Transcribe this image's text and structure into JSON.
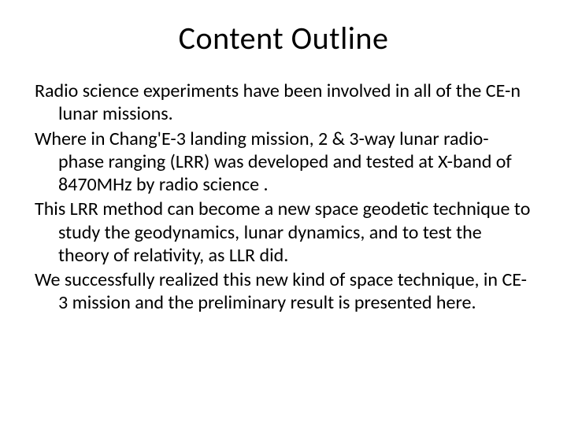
{
  "slide": {
    "title": "Content Outline",
    "paragraphs": [
      "Radio science experiments have been involved in all of the CE-n lunar missions.",
      "Where in Chang'E-3 landing mission,  2 & 3-way lunar radio-phase ranging (LRR) was developed and tested at X-band of 8470MHz by radio science .",
      "This LRR method can become a new space geodetic technique to study the geodynamics, lunar dynamics, and to test the theory of relativity, as LLR did.",
      "We successfully realized this new kind of space technique, in CE-3 mission and the preliminary result is presented here."
    ],
    "colors": {
      "background": "#ffffff",
      "text": "#000000"
    },
    "typography": {
      "title_fontsize": 40,
      "body_fontsize": 24,
      "font_family": "Calibri"
    }
  }
}
